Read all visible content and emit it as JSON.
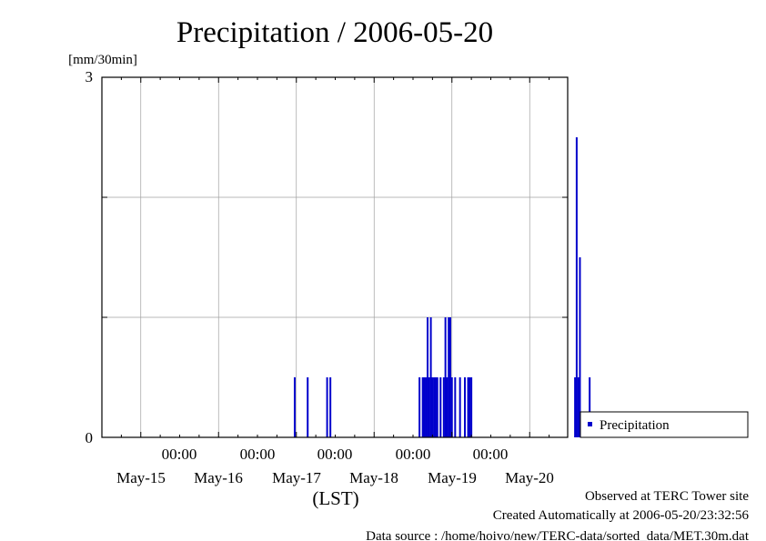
{
  "chart_data": {
    "type": "bar",
    "title": "Precipitation / 2006-05-20",
    "ylabel": "[mm/30min]",
    "xlabel": "(LST)",
    "ylim": [
      0,
      3
    ],
    "y_tick_labels": [
      "0",
      "3"
    ],
    "x_time_labels": [
      "00:00",
      "00:00",
      "00:00",
      "00:00",
      "00:00"
    ],
    "x_date_labels": [
      "May-15",
      "May-16",
      "May-17",
      "May-18",
      "May-19",
      "May-20"
    ],
    "grid": true,
    "legend": {
      "position": "right",
      "label": "Precipitation"
    },
    "series": [
      {
        "name": "Precipitation",
        "color": "#0000cc",
        "x": [
          "2006-05-16 23:30",
          "2006-05-17 03:30",
          "2006-05-17 09:30",
          "2006-05-17 10:30",
          "2006-05-18 14:00",
          "2006-05-18 15:00",
          "2006-05-18 15:30",
          "2006-05-18 16:00",
          "2006-05-18 16:30",
          "2006-05-18 17:00",
          "2006-05-18 17:30",
          "2006-05-18 18:00",
          "2006-05-18 18:30",
          "2006-05-18 19:00",
          "2006-05-18 19:30",
          "2006-05-18 20:30",
          "2006-05-18 21:30",
          "2006-05-18 22:00",
          "2006-05-18 22:30",
          "2006-05-18 23:00",
          "2006-05-18 23:30",
          "2006-05-19 00:00",
          "2006-05-19 01:00",
          "2006-05-19 02:30",
          "2006-05-19 04:00",
          "2006-05-19 05:00",
          "2006-05-19 05:30",
          "2006-05-19 06:00",
          "2006-05-20 14:00",
          "2006-05-20 14:30",
          "2006-05-20 15:00",
          "2006-05-20 15:30",
          "2006-05-20 18:30"
        ],
        "values": [
          0.5,
          0.5,
          0.5,
          0.5,
          0.5,
          0.5,
          0.5,
          0.5,
          1.0,
          0.5,
          1.0,
          0.5,
          0.5,
          0.5,
          0.5,
          0.5,
          0.5,
          1.0,
          0.5,
          1.0,
          1.0,
          0.5,
          0.5,
          0.5,
          0.5,
          0.5,
          0.5,
          0.5,
          0.5,
          2.5,
          0.5,
          1.5,
          0.5
        ]
      }
    ]
  },
  "footer": {
    "observed": "Observed at TERC Tower site",
    "created": "Created Automatically at 2006-05-20/23:32:56",
    "source": "Data source : /home/hoivo/new/TERC-data/sorted_data/MET.30m.dat"
  }
}
